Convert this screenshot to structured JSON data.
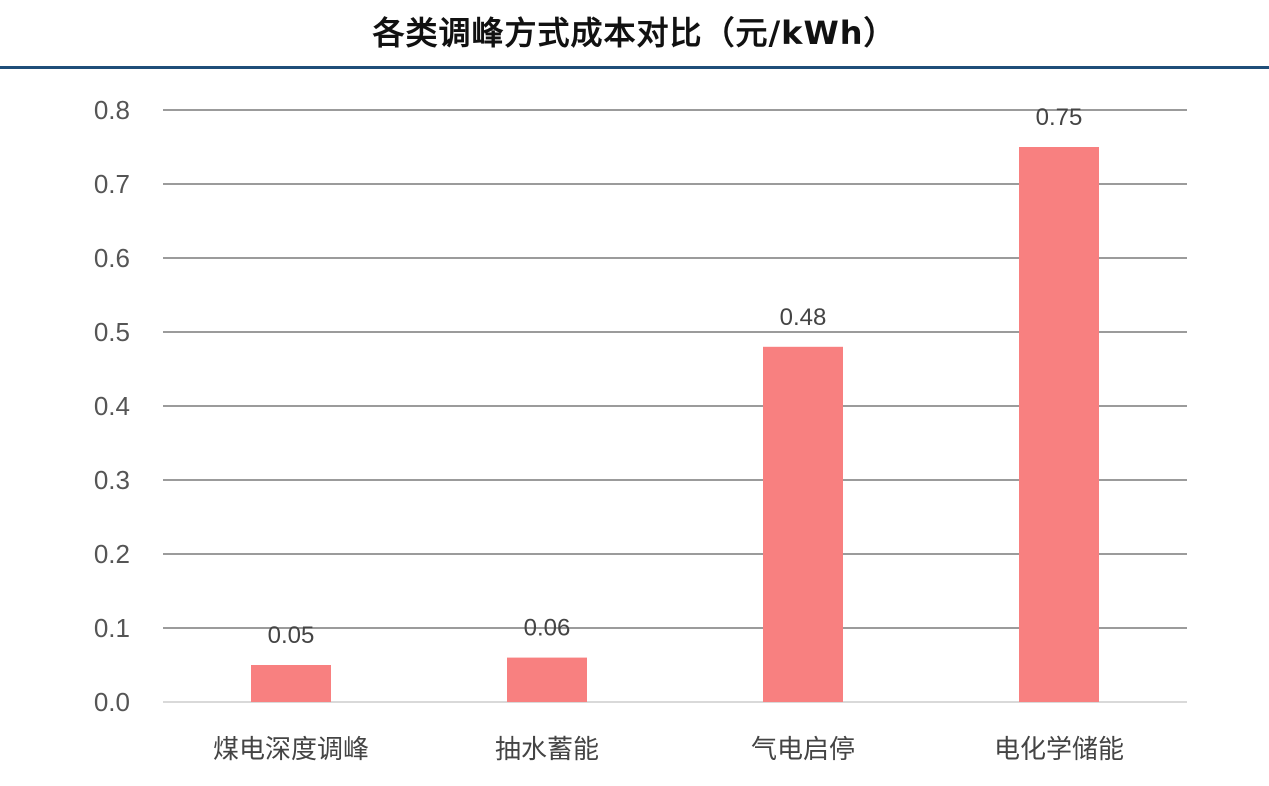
{
  "chart_data": {
    "type": "bar",
    "title": "各类调峰方式成本对比（元/kWh）",
    "categories": [
      "煤电深度调峰",
      "抽水蓄能",
      "气电启停",
      "电化学储能"
    ],
    "values": [
      0.05,
      0.06,
      0.48,
      0.75
    ],
    "data_labels": [
      "0.05",
      "0.06",
      "0.48",
      "0.75"
    ],
    "yticks": [
      "0.0",
      "0.1",
      "0.2",
      "0.3",
      "0.4",
      "0.5",
      "0.6",
      "0.7",
      "0.8"
    ],
    "ylim": [
      0,
      0.8
    ],
    "xlabel": "",
    "ylabel": "",
    "grid": true,
    "legend": "none",
    "bar_color": "#f88080",
    "title_rule_color": "#1f4e79"
  }
}
